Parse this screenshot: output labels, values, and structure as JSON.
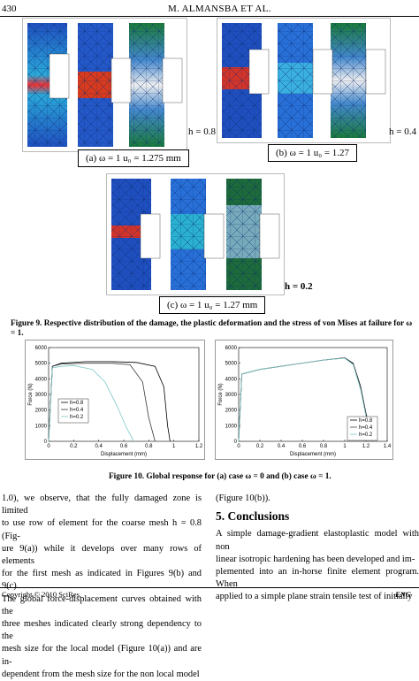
{
  "header": {
    "page_number": "430",
    "running_title": "M. ALMANSBA   ET   AL."
  },
  "figure9": {
    "panel_a": {
      "caption": "(a)  ω = 1  u₀ = 1.275 mm",
      "h_label": "h = 0.8"
    },
    "panel_b": {
      "caption": "(b)  ω = 1  u₀ = 1.27",
      "h_label": "h = 0.4"
    },
    "panel_c": {
      "caption": "(c)  ω = 1  u₀ = 1.27 mm",
      "h_label": "h = 0.2"
    },
    "caption": "Figure 9. Respective distribution of the damage, the plastic deformation and the stress of von Mises at failure for ω = 1."
  },
  "figure10": {
    "caption": "Figure 10. Global response for (a) case ω = 0 and (b) case ω = 1.",
    "chart_data": [
      {
        "type": "line",
        "title": "",
        "xlabel": "Displacement (mm)",
        "ylabel": "Force (N)",
        "xlim": [
          0,
          1.2
        ],
        "ylim": [
          0,
          6000
        ],
        "xticks": [
          "0",
          "0.2",
          "0.4",
          "0.6",
          "0.8",
          "1",
          "1.2"
        ],
        "yticks": [
          "0",
          "1000",
          "2000",
          "3000",
          "4000",
          "5000",
          "6000"
        ],
        "legend": {
          "position": "left",
          "entries": [
            "h=0.8",
            "h=0.4",
            "h=0.2"
          ]
        },
        "series": [
          {
            "name": "h=0.8",
            "color": "#000000",
            "x": [
              0,
              0.03,
              0.1,
              0.3,
              0.5,
              0.7,
              0.85,
              0.92,
              0.95,
              0.97
            ],
            "y": [
              0,
              4800,
              5000,
              5100,
              5100,
              5050,
              4800,
              3500,
              1000,
              0
            ]
          },
          {
            "name": "h=0.4",
            "color": "#3a3a3a",
            "x": [
              0,
              0.03,
              0.1,
              0.3,
              0.5,
              0.65,
              0.75,
              0.8,
              0.85
            ],
            "y": [
              0,
              4800,
              4950,
              5000,
              5000,
              4900,
              3800,
              1500,
              0
            ]
          },
          {
            "name": "h=0.2",
            "color": "#7fc8c8",
            "x": [
              0,
              0.03,
              0.1,
              0.2,
              0.35,
              0.45,
              0.55,
              0.62,
              0.68
            ],
            "y": [
              0,
              4700,
              4800,
              4850,
              4600,
              3800,
              2200,
              900,
              0
            ]
          }
        ]
      },
      {
        "type": "line",
        "title": "",
        "xlabel": "Displacement (mm)",
        "ylabel": "Force (N)",
        "xlim": [
          0,
          1.4
        ],
        "ylim": [
          0,
          6000
        ],
        "xticks": [
          "0",
          "0.2",
          "0.4",
          "0.6",
          "0.8",
          "1",
          "1.2",
          "1.4"
        ],
        "yticks": [
          "0",
          "1000",
          "2000",
          "3000",
          "4000",
          "5000",
          "6000"
        ],
        "legend": {
          "position": "bottom-right",
          "entries": [
            "h=0.8",
            "h=0.4",
            "h=0.2"
          ]
        },
        "series": [
          {
            "name": "h=0.8",
            "color": "#000000",
            "x": [
              0,
              0.03,
              0.2,
              0.5,
              0.8,
              1.0,
              1.08,
              1.15,
              1.2,
              1.26,
              1.27
            ],
            "y": [
              0,
              4300,
              4600,
              4900,
              5200,
              5350,
              5000,
              3500,
              1800,
              300,
              0
            ]
          },
          {
            "name": "h=0.4",
            "color": "#444444",
            "x": [
              0,
              0.03,
              0.2,
              0.5,
              0.8,
              1.0,
              1.08,
              1.15,
              1.2,
              1.25,
              1.27
            ],
            "y": [
              0,
              4300,
              4600,
              4900,
              5200,
              5330,
              4950,
              3400,
              1700,
              200,
              0
            ]
          },
          {
            "name": "h=0.2",
            "color": "#7fc8c8",
            "x": [
              0,
              0.03,
              0.2,
              0.5,
              0.8,
              1.0,
              1.08,
              1.15,
              1.2,
              1.25,
              1.27
            ],
            "y": [
              0,
              4300,
              4600,
              4900,
              5200,
              5320,
              4900,
              3300,
              1600,
              200,
              0
            ]
          }
        ]
      }
    ]
  },
  "body": {
    "left": [
      "1.0), we observe, that the fully damaged zone is limited",
      "to use row of element for the coarse mesh h = 0.8 (Fig-",
      "ure 9(a)) while it develops over many rows of elements",
      "for the first mesh as indicated in Figures 9(b) and 9(c).",
      "The global force-displacement curves obtained with the",
      "three meshes indicated clearly strong dependency to the",
      "mesh size for the local model (Figure 10(a)) and are in-",
      "dependent from the mesh size for the non local model"
    ],
    "right_ref": "(Figure 10(b)).",
    "section_heading": "5. Conclusions",
    "right": [
      "A simple damage-gradient elastoplastic model with non",
      "linear isotropic hardening has been developed and im-",
      "plemented into an in-horse finite element program. When",
      "applied to a simple plane strain tensile test of initially"
    ]
  },
  "footer": {
    "copyright": "Copyright © 2010 SciRes.",
    "journal": "ENG"
  }
}
